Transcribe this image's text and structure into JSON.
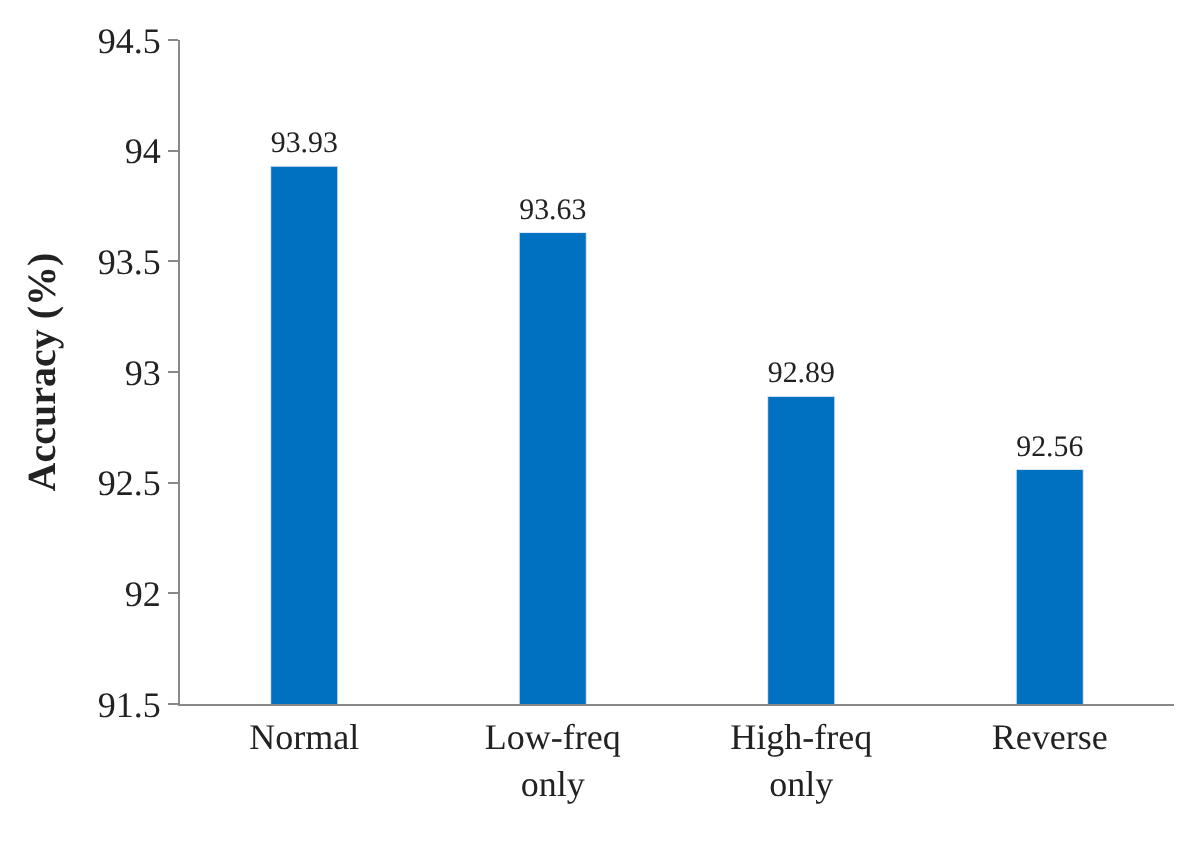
{
  "chart_data": {
    "type": "bar",
    "ylabel": "Accuracy (%)",
    "categories": [
      "Normal",
      "Low-freq only",
      "High-freq only",
      "Reverse"
    ],
    "values": [
      93.93,
      93.63,
      92.89,
      92.56
    ],
    "color": "#0070c0",
    "ylim": [
      91.5,
      94.5
    ],
    "yticks": [
      91.5,
      92,
      92.5,
      93,
      93.5,
      94,
      94.5
    ],
    "data_labels": true,
    "legend": false
  }
}
